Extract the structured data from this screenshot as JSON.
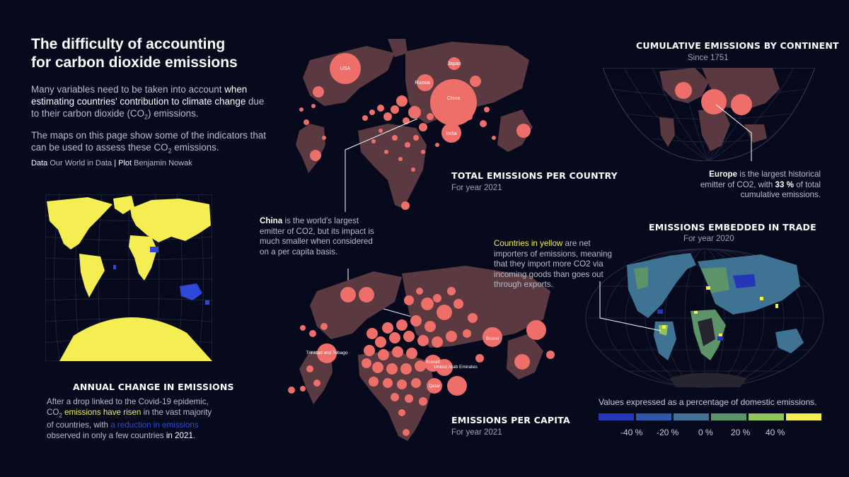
{
  "title": {
    "line1": "The difficulty of accounting",
    "line2": "for carbon dioxide emissions"
  },
  "intro": {
    "p1_a": "Many variables need to be taken into account ",
    "p1_b": "when estimating countries' contribution to climate change",
    "p1_c": " due to their carbon dioxide (CO",
    "p1_sub": "2",
    "p1_d": ") emissions.",
    "p2_a": "The maps on this page show some of the indicators that can be used to assess these CO",
    "p2_sub": "2",
    "p2_b": " emissions."
  },
  "credit": {
    "data_label": "Data",
    "data_value": "Our World in Data",
    "sep": "|",
    "plot_label": "Plot",
    "plot_value": "Benjamin Nowak"
  },
  "annual_change": {
    "heading": "Annual change in emissions",
    "text_a": "After a drop linked to the Covid-19 epidemic, CO",
    "text_sub": "2",
    "text_b": " ",
    "text_yellow": "emissions have risen",
    "text_c": " in the vast majority of countries, with ",
    "text_blue": "a reduction in emissions",
    "text_d": " observed in only a few countries ",
    "text_e": "in 2021",
    "text_f": "."
  },
  "total_emissions": {
    "heading": "Total emissions per country",
    "sub": "For year 2021",
    "labels": [
      "USA",
      "Japan",
      "Russia",
      "China",
      "India"
    ]
  },
  "china_annotation": {
    "bold": "China",
    "text": " is the world's largest emitter of CO2, but its impact is much smaller when considered on a per capita basis."
  },
  "per_capita": {
    "heading": "Emissions per capita",
    "sub": "For year 2021",
    "labels": [
      "Trinidad and Tobago",
      "Kuwait",
      "United Arab Emirates",
      "Qatar",
      "Brunei"
    ]
  },
  "cumulative": {
    "heading": "Cumulative emissions by continent",
    "sub": "Since 1751",
    "ann_bold1": "Europe",
    "ann_a": " is the largest historical emitter of CO2, with ",
    "ann_bold2": "33 %",
    "ann_b": " of total cumulative emissions."
  },
  "trade_annotation": {
    "yellow": "Countries in yellow",
    "text": " are net importers of emissions, meaning that they import more CO2 via incoming goods than goes out through exports."
  },
  "trade": {
    "heading": "Emissions embedded in trade",
    "sub": "For year 2020"
  },
  "legend": {
    "caption": "Values expressed as a percentage of domestic emissions.",
    "colors": [
      "#2537b8",
      "#2f56a8",
      "#3f7393",
      "#5c9468",
      "#90c55a",
      "#f4ee52"
    ],
    "ticks": [
      "-40 %",
      "-20 %",
      "0 %",
      "20 %",
      "40 %"
    ]
  },
  "palette": {
    "background": "#070a1c",
    "land_dark": "#5a3a40",
    "bubble": "#ee6e6a",
    "yellow": "#f4ee52",
    "blue": "#2f48d8",
    "graticule": "#2c3048"
  }
}
